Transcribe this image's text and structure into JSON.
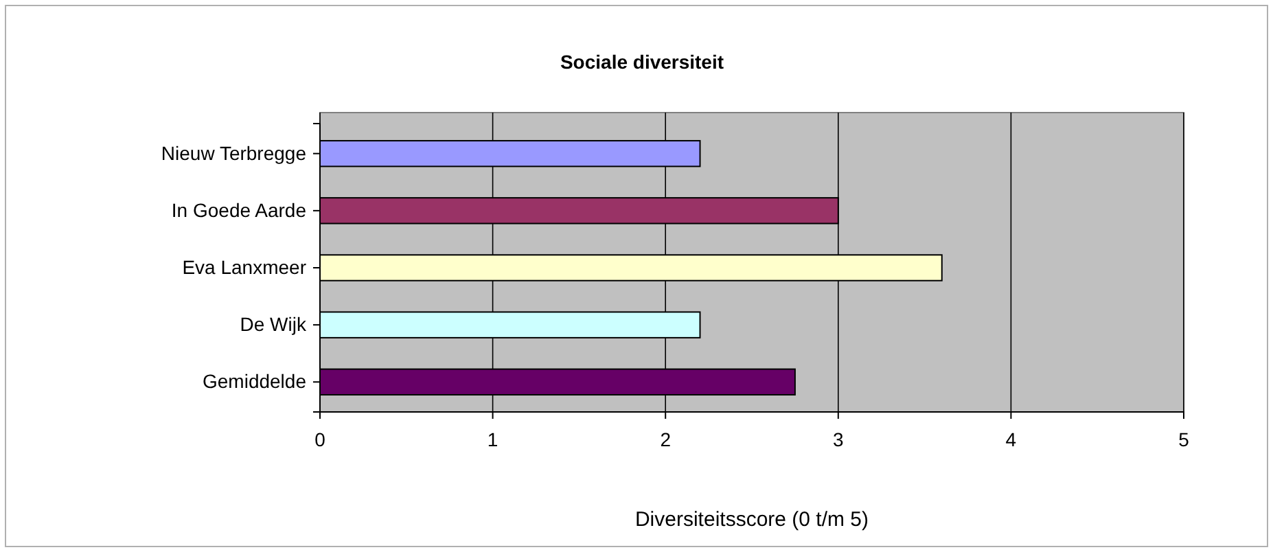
{
  "chart_data": {
    "type": "bar",
    "orientation": "horizontal",
    "title": "Sociale diversiteit",
    "xlabel": "Diversiteitsscore (0 t/m 5)",
    "categories": [
      "Nieuw Terbregge",
      "In Goede Aarde",
      "Eva Lanxmeer",
      "De Wijk",
      "Gemiddelde"
    ],
    "values": [
      2.2,
      3.0,
      3.6,
      2.2,
      2.75
    ],
    "colors": [
      "#9999ff",
      "#993366",
      "#ffffcc",
      "#ccffff",
      "#660066"
    ],
    "xlim": [
      0,
      5
    ],
    "xticks": [
      0,
      1,
      2,
      3,
      4,
      5
    ],
    "grid": "x"
  }
}
